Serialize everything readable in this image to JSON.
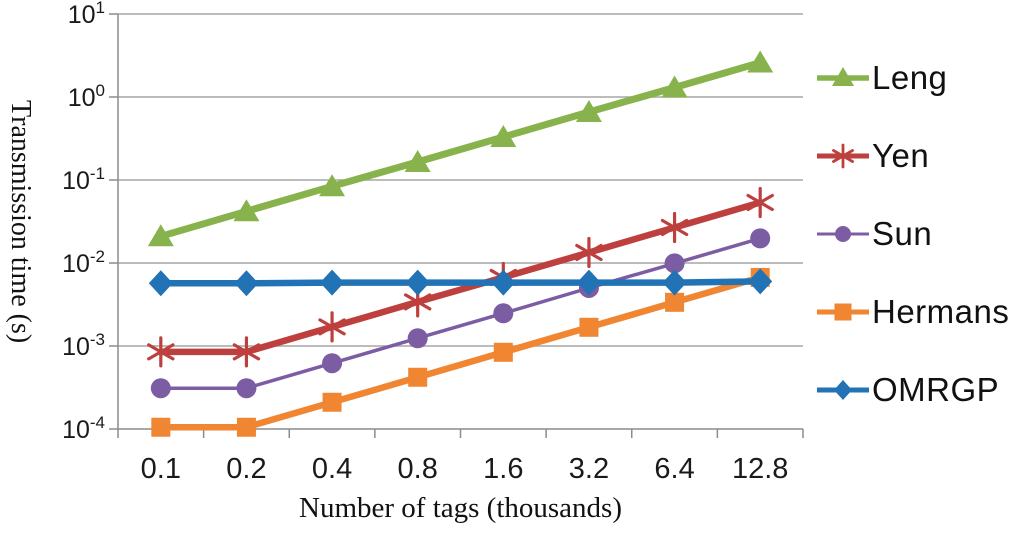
{
  "chart_data": {
    "type": "line",
    "title": "",
    "xlabel": "Number of tags (thousands)",
    "ylabel": "Transmission time (s)",
    "y_scale": "log",
    "ylim": [
      0.0001,
      10
    ],
    "y_tick_base": "10",
    "y_tick_exponents": [
      "1",
      "0",
      "-1",
      "-2",
      "-3",
      "-4"
    ],
    "categories": [
      "0.1",
      "0.2",
      "0.4",
      "0.8",
      "1.6",
      "3.2",
      "6.4",
      "12.8"
    ],
    "grid": "horizontal",
    "legend_position": "right",
    "palette": {
      "grid": "#A6A6A6",
      "axis": "#8C8C8C",
      "text": "#1A1A1A"
    },
    "series": [
      {
        "name": "Leng",
        "color": "#87B24C",
        "marker": "triangle",
        "line_width": 7,
        "values": [
          0.021,
          0.042,
          0.084,
          0.165,
          0.33,
          0.66,
          1.3,
          2.6
        ]
      },
      {
        "name": "Yen",
        "color": "#BE403E",
        "marker": "asterisk",
        "line_width": 6.5,
        "values": [
          0.00085,
          0.00085,
          0.0017,
          0.0034,
          0.0067,
          0.0134,
          0.0268,
          0.0536
        ]
      },
      {
        "name": "Sun",
        "color": "#7C5DA4",
        "marker": "circle",
        "line_width": 3.5,
        "values": [
          0.00031,
          0.00031,
          0.00062,
          0.00124,
          0.00248,
          0.005,
          0.0099,
          0.0198
        ]
      },
      {
        "name": "Hermans",
        "color": "#F08632",
        "marker": "square",
        "line_width": 6.5,
        "values": [
          0.000105,
          0.000105,
          0.00021,
          0.00042,
          0.00084,
          0.00168,
          0.00336,
          0.0067
        ]
      },
      {
        "name": "OMRGP",
        "color": "#2173B5",
        "marker": "diamond",
        "line_width": 6.5,
        "values": [
          0.0057,
          0.0057,
          0.0058,
          0.0058,
          0.0058,
          0.0058,
          0.0058,
          0.006
        ]
      }
    ]
  }
}
